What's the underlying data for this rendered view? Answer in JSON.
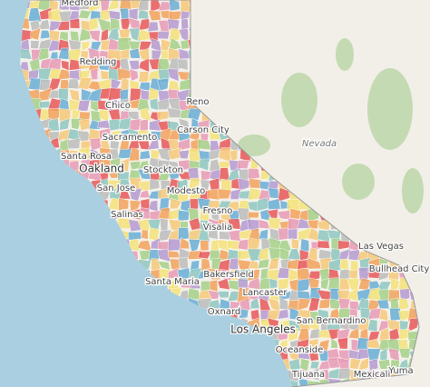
{
  "map": {
    "labels": [
      {
        "text": "Medford"
      },
      {
        "text": "Redding"
      },
      {
        "text": "Chico"
      },
      {
        "text": "Reno"
      },
      {
        "text": "Carson City"
      },
      {
        "text": "Sacramento"
      },
      {
        "text": "Nevada"
      },
      {
        "text": "Santa Rosa"
      },
      {
        "text": "Oakland"
      },
      {
        "text": "Stockton"
      },
      {
        "text": "San Jose"
      },
      {
        "text": "Modesto"
      },
      {
        "text": "Salinas"
      },
      {
        "text": "Fresno"
      },
      {
        "text": "Visalia"
      },
      {
        "text": "Las Vegas"
      },
      {
        "text": "Bullhead City"
      },
      {
        "text": "Bakersfield"
      },
      {
        "text": "Santa Maria"
      },
      {
        "text": "Lancaster"
      },
      {
        "text": "Oxnard"
      },
      {
        "text": "Los Angeles"
      },
      {
        "text": "San Bernardino"
      },
      {
        "text": "Oceanside"
      },
      {
        "text": "Tijuana"
      },
      {
        "text": "Mexicali"
      },
      {
        "text": "Yuma"
      }
    ]
  }
}
